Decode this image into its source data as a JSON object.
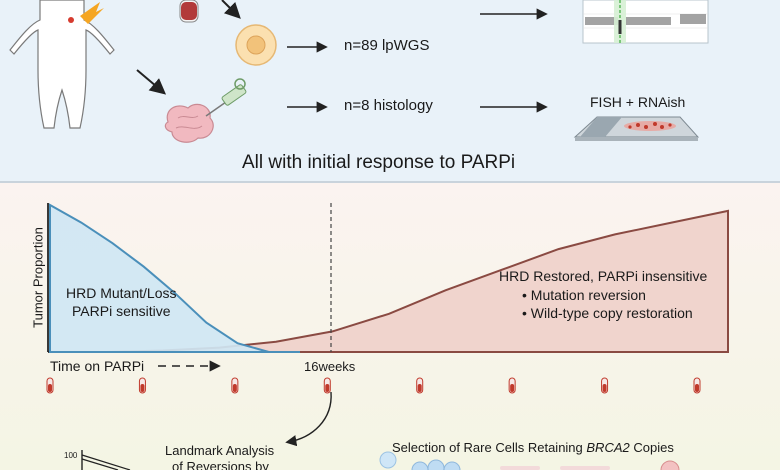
{
  "top_panel": {
    "lpwgs_label": "n=89 lpWGS",
    "histology_label": "n=8 histology",
    "fish_label": "FISH + RNAish",
    "caption": "All with initial response to PARPi"
  },
  "timeline": {
    "y_axis_label": "Tumor Proportion",
    "x_axis_label": "Time on PARPi",
    "marker_label": "16weeks",
    "sensitive_region": {
      "line1": "HRD Mutant/Loss",
      "line2": "PARPi sensitive"
    },
    "insensitive_region": {
      "title": "HRD Restored, PARPi insensitive",
      "bullets": [
        "Mutation reversion",
        "Wild-type copy restoration"
      ]
    },
    "curves": {
      "sensitive_fraction": [
        1.0,
        0.88,
        0.74,
        0.58,
        0.4,
        0.2,
        0.06,
        0.0,
        0.0
      ],
      "insensitive_fraction": [
        0.0,
        0.0,
        0.01,
        0.03,
        0.07,
        0.14,
        0.26,
        0.42,
        0.56,
        0.7,
        0.8,
        0.88,
        0.96
      ],
      "colors": {
        "sensitive_fill": "#cfe6f3",
        "sensitive_stroke": "#4a8fba",
        "insensitive_fill": "#f0d4cd",
        "insensitive_stroke": "#8a4a42"
      }
    },
    "sample_count": 8
  },
  "bottom_panel": {
    "axis_tick": "100",
    "landmark_line1": "Landmark Analysis",
    "landmark_line2": "of Reversions by",
    "selection_prefix": "Selection of Rare Cells Retaining ",
    "selection_gene": "BRCA2",
    "selection_suffix": " Copies"
  },
  "colors": {
    "top_bg": "#e9f2f9",
    "mid_bg": "#fbf4f1",
    "bottom_bg": "#f7f4e7",
    "divider": "#cfd9e2",
    "tube_red": "#c0392b"
  }
}
